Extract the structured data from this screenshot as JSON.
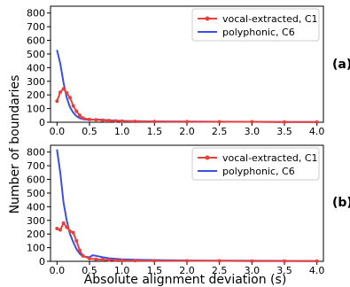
{
  "chart_data": [
    {
      "type": "line",
      "panel_label": "(a)",
      "x_ticks": [
        0.0,
        0.5,
        1.0,
        1.5,
        2.0,
        2.5,
        3.0,
        3.5,
        4.0
      ],
      "y_ticks": [
        0,
        100,
        200,
        300,
        400,
        500,
        600,
        700,
        800
      ],
      "xlim": [
        -0.1,
        4.1
      ],
      "ylim": [
        0,
        850
      ],
      "legend_position": "top-right",
      "series": [
        {
          "name": "vocal-extracted, C1",
          "color": "#e8413c",
          "marker": "dot",
          "x": [
            0.0,
            0.05,
            0.1,
            0.15,
            0.2,
            0.25,
            0.3,
            0.35,
            0.4,
            0.5,
            0.6,
            0.7,
            0.8,
            0.9,
            1.0,
            1.2,
            1.5,
            2.0,
            2.5,
            3.0,
            3.5,
            4.0
          ],
          "y": [
            155,
            220,
            245,
            215,
            180,
            120,
            80,
            50,
            30,
            20,
            18,
            15,
            12,
            10,
            8,
            6,
            5,
            4,
            3,
            3,
            2,
            2
          ]
        },
        {
          "name": "polyphonic, C6",
          "color": "#3b4fe0",
          "x": [
            0.0,
            0.05,
            0.1,
            0.15,
            0.2,
            0.25,
            0.3,
            0.35,
            0.4,
            0.5,
            0.6,
            0.7,
            0.8,
            1.0,
            1.2,
            1.5,
            2.0,
            2.5,
            3.0,
            3.5,
            4.0
          ],
          "y": [
            530,
            430,
            290,
            180,
            110,
            70,
            45,
            30,
            22,
            18,
            20,
            18,
            15,
            10,
            8,
            6,
            5,
            4,
            3,
            2,
            2
          ]
        }
      ]
    },
    {
      "type": "line",
      "panel_label": "(b)",
      "x_ticks": [
        0.0,
        0.5,
        1.0,
        1.5,
        2.0,
        2.5,
        3.0,
        3.5,
        4.0
      ],
      "y_ticks": [
        0,
        100,
        200,
        300,
        400,
        500,
        600,
        700,
        800
      ],
      "xlim": [
        -0.1,
        4.1
      ],
      "ylim": [
        0,
        850
      ],
      "legend_position": "top-right",
      "series": [
        {
          "name": "vocal-extracted, C1",
          "color": "#e8413c",
          "marker": "dot",
          "x": [
            0.0,
            0.05,
            0.1,
            0.15,
            0.2,
            0.25,
            0.3,
            0.35,
            0.4,
            0.5,
            0.6,
            0.7,
            0.8,
            0.9,
            1.0,
            1.2,
            1.5,
            2.0,
            2.5,
            3.0,
            3.5,
            4.0
          ],
          "y": [
            240,
            230,
            280,
            250,
            220,
            210,
            150,
            80,
            40,
            20,
            15,
            12,
            10,
            8,
            6,
            5,
            4,
            3,
            3,
            2,
            2,
            2
          ]
        },
        {
          "name": "polyphonic, C6",
          "color": "#3b4fe0",
          "x": [
            0.0,
            0.05,
            0.1,
            0.15,
            0.2,
            0.25,
            0.3,
            0.35,
            0.4,
            0.5,
            0.55,
            0.6,
            0.7,
            0.8,
            1.0,
            1.2,
            1.5,
            2.0,
            2.5,
            3.0,
            3.5,
            4.0
          ],
          "y": [
            820,
            650,
            430,
            300,
            200,
            140,
            90,
            55,
            35,
            30,
            45,
            40,
            30,
            22,
            15,
            12,
            9,
            6,
            5,
            4,
            3,
            2
          ]
        }
      ]
    }
  ],
  "axis_titles": {
    "ylabel": "Number of boundaries",
    "xlabel": "Absolute alignment deviation (s)"
  }
}
